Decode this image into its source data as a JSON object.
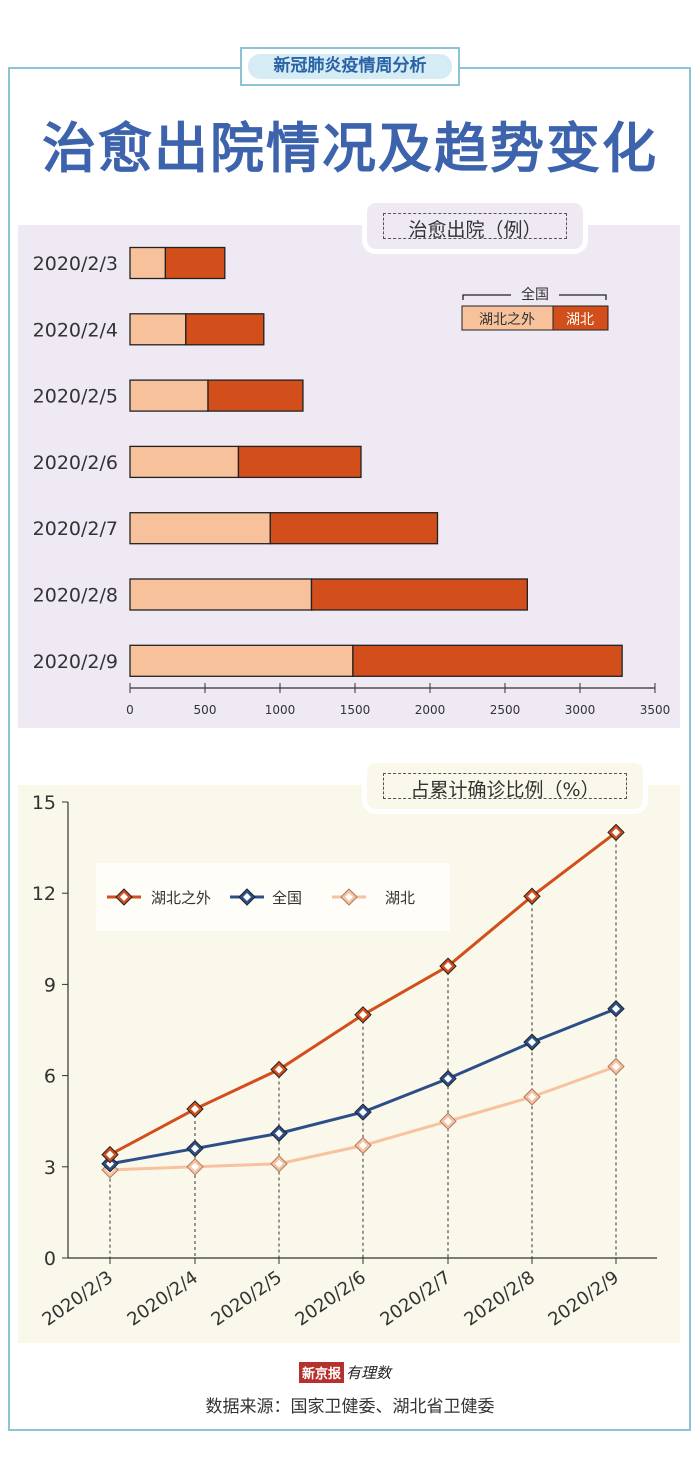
{
  "header": {
    "tag": "新冠肺炎疫情周分析",
    "title": "治愈出院情况及趋势变化"
  },
  "colors": {
    "outside": "#f7c29b",
    "hubei_dark": "#d24f1b",
    "national": "#2c4f8a",
    "hubei_light": "#f7c2a0",
    "frame": "#8cc4d4",
    "title": "#3d63ad"
  },
  "chart_data": [
    {
      "type": "bar",
      "stacked": true,
      "orientation": "horizontal",
      "title": "治愈出院（例）",
      "categories": [
        "2020/2/3",
        "2020/2/4",
        "2020/2/5",
        "2020/2/6",
        "2020/2/7",
        "2020/2/8",
        "2020/2/9"
      ],
      "series": [
        {
          "name": "湖北之外",
          "values": [
            236,
            372,
            520,
            723,
            935,
            1210,
            1486
          ]
        },
        {
          "name": "湖北",
          "values": [
            396,
            520,
            633,
            817,
            1115,
            1439,
            1795
          ]
        }
      ],
      "legend_group": "全国",
      "legend_placement": "top-right",
      "xlim": [
        0,
        3500
      ],
      "xticks": [
        0,
        500,
        1000,
        1500,
        2000,
        2500,
        3000,
        3500
      ],
      "grid": false
    },
    {
      "type": "line",
      "title": "占累计确诊比例（%）",
      "categories": [
        "2020/2/3",
        "2020/2/4",
        "2020/2/5",
        "2020/2/6",
        "2020/2/7",
        "2020/2/8",
        "2020/2/9"
      ],
      "series": [
        {
          "name": "湖北之外",
          "values": [
            3.4,
            4.9,
            6.2,
            8.0,
            9.6,
            11.9,
            14.0
          ]
        },
        {
          "name": "全国",
          "values": [
            3.1,
            3.6,
            4.1,
            4.8,
            5.9,
            7.1,
            8.2
          ]
        },
        {
          "name": "湖北",
          "values": [
            2.9,
            3.0,
            3.1,
            3.7,
            4.5,
            5.3,
            6.3
          ]
        }
      ],
      "legend_placement": "top-left",
      "ylim": [
        0,
        15
      ],
      "yticks": [
        0,
        3,
        6,
        9,
        12,
        15
      ],
      "grid": false
    }
  ],
  "footer": {
    "logo_red": "新京报",
    "logo_brand": "有理数",
    "source": "数据来源：国家卫健委、湖北省卫健委"
  }
}
